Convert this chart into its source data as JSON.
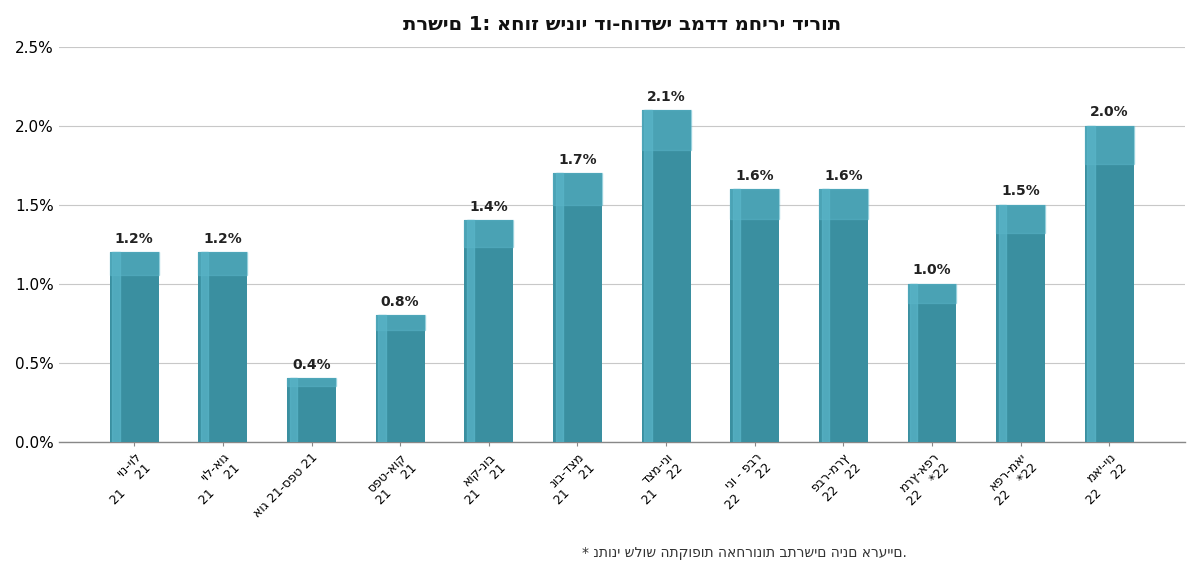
{
  "title": "תרשים 1: אחוז שינוי דו-חודשי במדד מחירי דירות",
  "categories": [
    "יונ-יול\n21    21",
    "יול-אוג\n21    21",
    "אוג-ספט\n21 21",
    "ספט-אוק\n21    21",
    "אוק-נוב\n21    21",
    "נוב-דצמ\n21    21",
    "דצמ-ינו\n21    22",
    "ינו - פבר\n22         22",
    "פבר-מרץ\n22    22",
    "מרץ-אפר\n22    *22",
    "אפר-מאי\n22    *22",
    "מאי-יונ\n22    22"
  ],
  "values": [
    1.2,
    1.2,
    0.4,
    0.8,
    1.4,
    1.7,
    2.1,
    1.6,
    1.6,
    1.0,
    1.5,
    2.0
  ],
  "labels": [
    "1.2%",
    "1.2%",
    "0.4%",
    "0.8%",
    "1.4%",
    "1.7%",
    "2.1%",
    "1.6%",
    "1.6%",
    "1.0%",
    "1.5%",
    "2.0%"
  ],
  "bar_color": "#3a8fa0",
  "bar_color_light": "#5ab5c8",
  "ylim": [
    0,
    2.5
  ],
  "yticks": [
    0.0,
    0.5,
    1.0,
    1.5,
    2.0,
    2.5
  ],
  "ytick_labels": [
    "0.0%",
    "0.5%",
    "1.0%",
    "1.5%",
    "2.0%",
    "2.5%"
  ],
  "footnote": "* נתוני שלוש התקופות האחרונות בתרשים הינם ארעיים.",
  "background_color": "#ffffff",
  "grid_color": "#c8c8c8"
}
